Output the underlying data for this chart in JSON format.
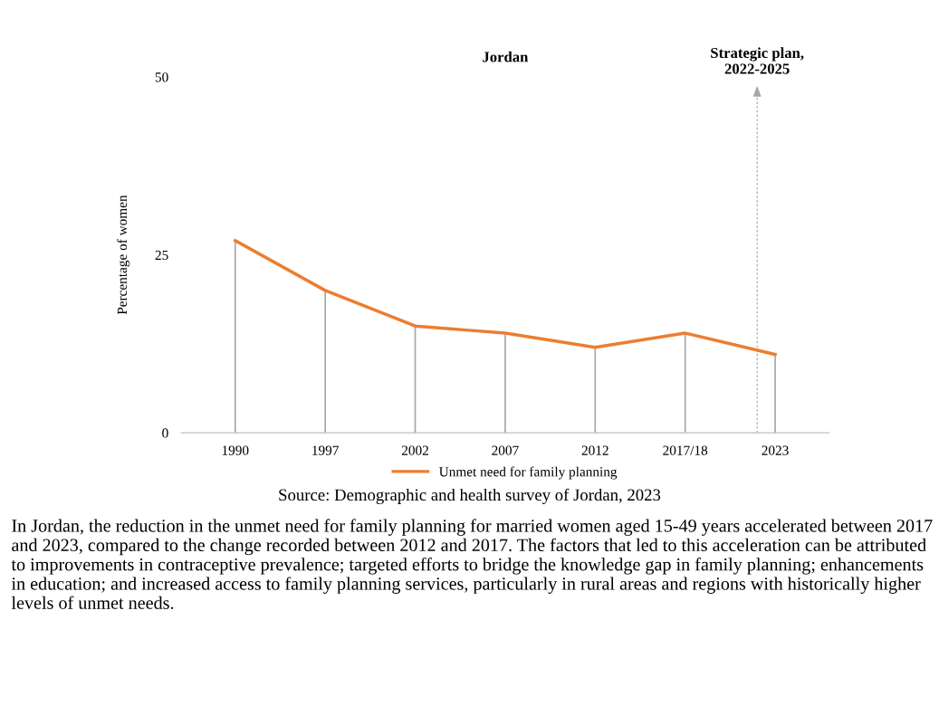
{
  "chart_data": {
    "type": "line",
    "title": "Jordan",
    "ylabel": "Percentage of women",
    "categories": [
      "1990",
      "1997",
      "2002",
      "2007",
      "2012",
      "2017/18",
      "2023"
    ],
    "series": [
      {
        "name": "Unmet need for family planning",
        "color": "#ed7d31",
        "values": [
          27,
          20,
          15,
          14,
          12,
          14,
          11
        ],
        "errors": [
          [
            0,
            27
          ],
          [
            0,
            20
          ],
          [
            0,
            15
          ],
          [
            0,
            14
          ],
          [
            0,
            12
          ],
          [
            0,
            14
          ],
          [
            0,
            11
          ]
        ]
      }
    ],
    "ylim": [
      0,
      50
    ],
    "yticks": [
      0,
      25,
      50
    ],
    "grid": false,
    "legend": "bottom",
    "marker": "none",
    "line_style": "solid",
    "annotations": [
      "Strategic plan,\n2022-2025",
      "Source: Demographic and health survey of Jordan, 2023",
      "In Jordan, the reduction in the unmet need for family planning for married women aged 15-49 years accelerated between 2017 and 2023, compared to the change recorded between 2012 and 2017. The factors that led to this acceleration can be attributed to improvements in contraceptive prevalence; targeted efforts to bridge the knowledge gap in family planning; enhancements in education; and increased access to family planning services, particularly in rural areas and regions with historically higher levels of unmet needs."
    ]
  }
}
